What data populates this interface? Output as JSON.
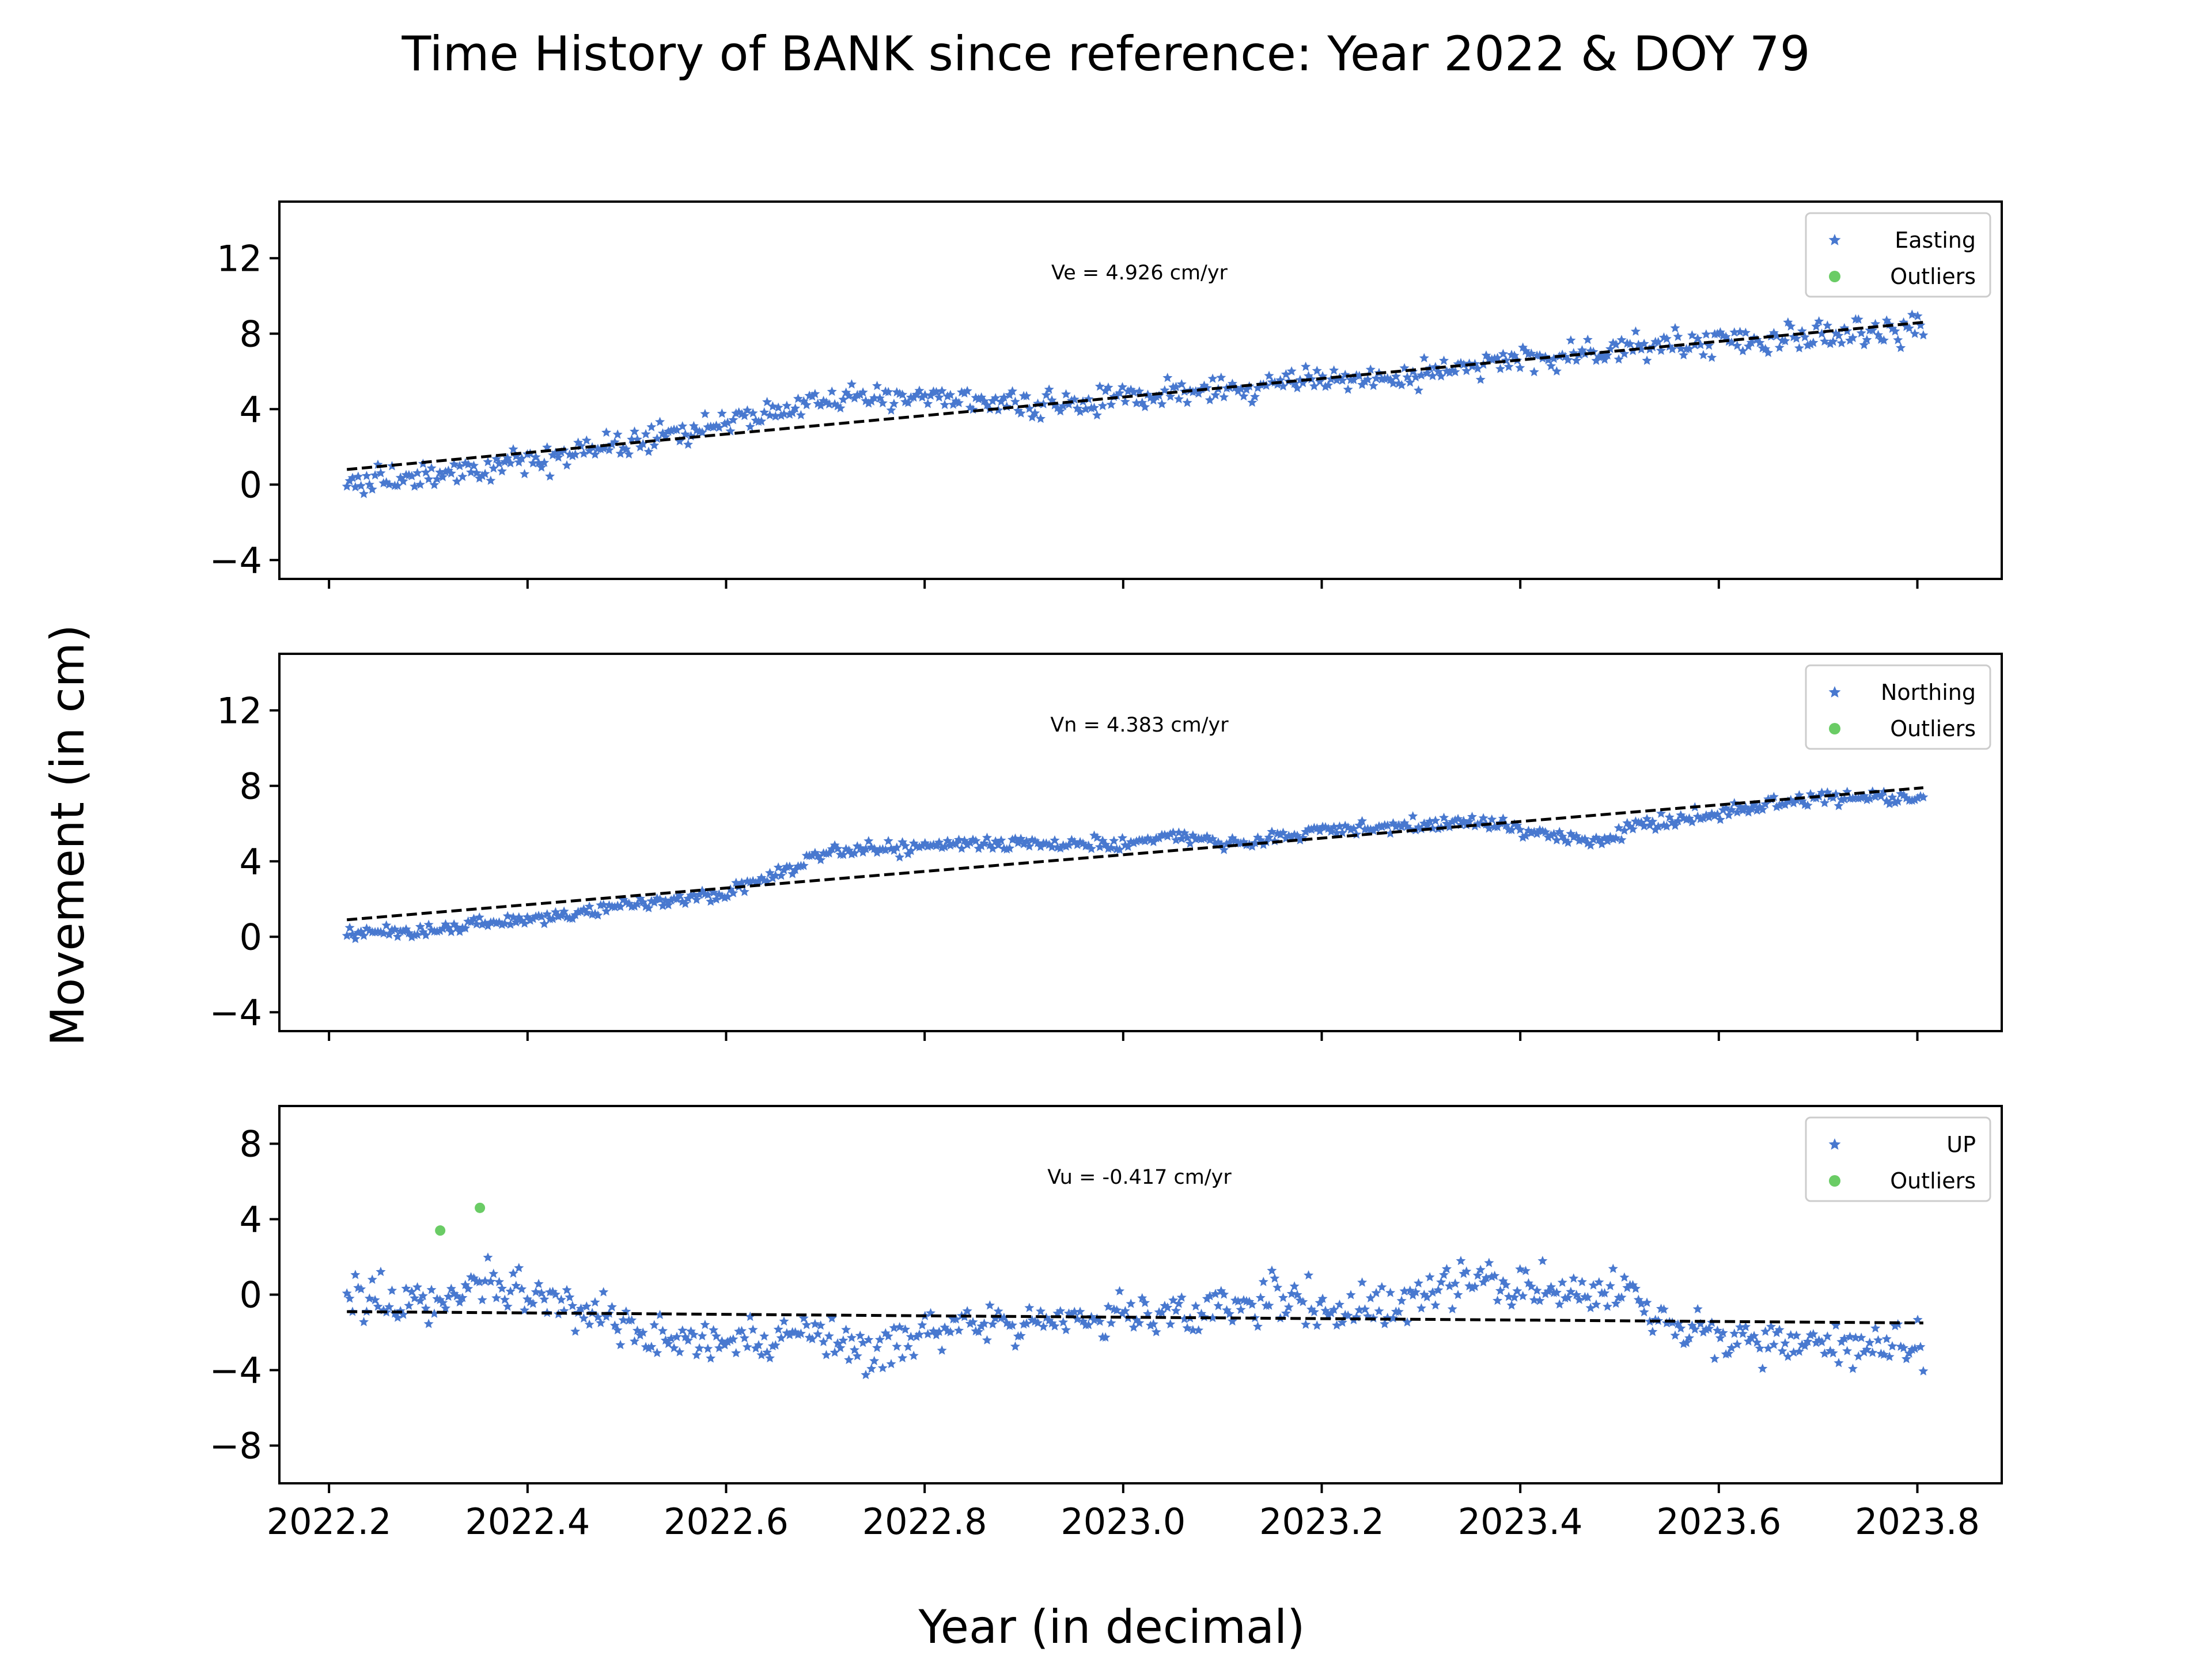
{
  "chart_data": {
    "title": "Time History of BANK since reference: Year 2022 & DOY 79",
    "xlabel": "Year (in decimal)",
    "ylabel": "Movement (in cm)",
    "x_range": [
      2022.15,
      2023.885
    ],
    "x_ticks": [
      2022.2,
      2022.4,
      2022.6,
      2022.8,
      2023.0,
      2023.2,
      2023.4,
      2023.6,
      2023.8
    ],
    "x_tick_labels": [
      "2022.2",
      "2022.4",
      "2022.6",
      "2022.8",
      "2023.0",
      "2023.2",
      "2023.4",
      "2023.6",
      "2023.8"
    ],
    "x_tick_labels_on_bottom_only": true,
    "grid": false,
    "legend_placement": "top-right",
    "colors": {
      "data": "#4878cf",
      "outliers": "#6acc65",
      "fit": "#000000"
    },
    "panels": [
      {
        "type": "scatter",
        "series_name": "Easting",
        "outliers_name": "Outliers",
        "velocity_label": "Ve =  4.926 cm/yr",
        "ylim": [
          -5,
          15
        ],
        "y_ticks": [
          -4,
          0,
          4,
          8,
          12
        ],
        "y_tick_labels": [
          "−4",
          "0",
          "4",
          "8",
          "12"
        ],
        "fit": {
          "x": [
            2022.218,
            2023.806
          ],
          "y": [
            0.8,
            8.6
          ]
        },
        "trend": [
          [
            2022.218,
            0.0
          ],
          [
            2022.3,
            0.5
          ],
          [
            2022.4,
            1.2
          ],
          [
            2022.5,
            2.2
          ],
          [
            2022.62,
            3.5
          ],
          [
            2022.7,
            4.6
          ],
          [
            2022.8,
            4.7
          ],
          [
            2022.9,
            4.1
          ],
          [
            2023.0,
            4.7
          ],
          [
            2023.1,
            5.1
          ],
          [
            2023.2,
            5.7
          ],
          [
            2023.3,
            5.8
          ],
          [
            2023.4,
            6.6
          ],
          [
            2023.5,
            7.1
          ],
          [
            2023.6,
            7.6
          ],
          [
            2023.7,
            7.9
          ],
          [
            2023.806,
            8.4
          ]
        ],
        "noise": 0.65,
        "outliers": []
      },
      {
        "type": "scatter",
        "series_name": "Northing",
        "outliers_name": "Outliers",
        "velocity_label": "Vn =  4.383 cm/yr",
        "ylim": [
          -5,
          15
        ],
        "y_ticks": [
          -4,
          0,
          4,
          8,
          12
        ],
        "y_tick_labels": [
          "−4",
          "0",
          "4",
          "8",
          "12"
        ],
        "fit": {
          "x": [
            2022.218,
            2023.806
          ],
          "y": [
            0.9,
            7.9
          ]
        },
        "trend": [
          [
            2022.218,
            0.2
          ],
          [
            2022.3,
            0.3
          ],
          [
            2022.4,
            0.9
          ],
          [
            2022.5,
            1.6
          ],
          [
            2022.6,
            2.3
          ],
          [
            2022.65,
            3.4
          ],
          [
            2022.7,
            4.4
          ],
          [
            2022.8,
            4.8
          ],
          [
            2022.9,
            5.0
          ],
          [
            2023.0,
            4.8
          ],
          [
            2023.05,
            5.4
          ],
          [
            2023.1,
            4.9
          ],
          [
            2023.2,
            5.6
          ],
          [
            2023.3,
            5.9
          ],
          [
            2023.35,
            6.1
          ],
          [
            2023.4,
            5.7
          ],
          [
            2023.48,
            4.9
          ],
          [
            2023.52,
            6.0
          ],
          [
            2023.6,
            6.5
          ],
          [
            2023.7,
            7.4
          ],
          [
            2023.806,
            7.3
          ]
        ],
        "noise": 0.32,
        "outliers": []
      },
      {
        "type": "scatter",
        "series_name": "UP",
        "outliers_name": "Outliers",
        "velocity_label": "Vu = -0.417 cm/yr",
        "ylim": [
          -10,
          10
        ],
        "y_ticks": [
          -8,
          -4,
          0,
          4,
          8
        ],
        "y_tick_labels": [
          "−8",
          "−4",
          "0",
          "4",
          "8"
        ],
        "fit": {
          "x": [
            2022.218,
            2023.806
          ],
          "y": [
            -0.9,
            -1.5
          ]
        },
        "trend": [
          [
            2022.218,
            0.2
          ],
          [
            2022.3,
            -0.4
          ],
          [
            2022.36,
            0.8
          ],
          [
            2022.45,
            -0.8
          ],
          [
            2022.55,
            -2.5
          ],
          [
            2022.65,
            -2.2
          ],
          [
            2022.75,
            -2.6
          ],
          [
            2022.85,
            -1.4
          ],
          [
            2022.95,
            -1.5
          ],
          [
            2023.05,
            -1.0
          ],
          [
            2023.15,
            -0.3
          ],
          [
            2023.25,
            -0.7
          ],
          [
            2023.35,
            0.8
          ],
          [
            2023.45,
            0.1
          ],
          [
            2023.51,
            0.3
          ],
          [
            2023.55,
            -1.8
          ],
          [
            2023.65,
            -2.4
          ],
          [
            2023.75,
            -2.5
          ],
          [
            2023.806,
            -2.8
          ]
        ],
        "noise": 1.05,
        "outliers": [
          {
            "x": 2022.312,
            "y": 3.4
          },
          {
            "x": 2022.352,
            "y": 4.6
          }
        ]
      }
    ]
  }
}
